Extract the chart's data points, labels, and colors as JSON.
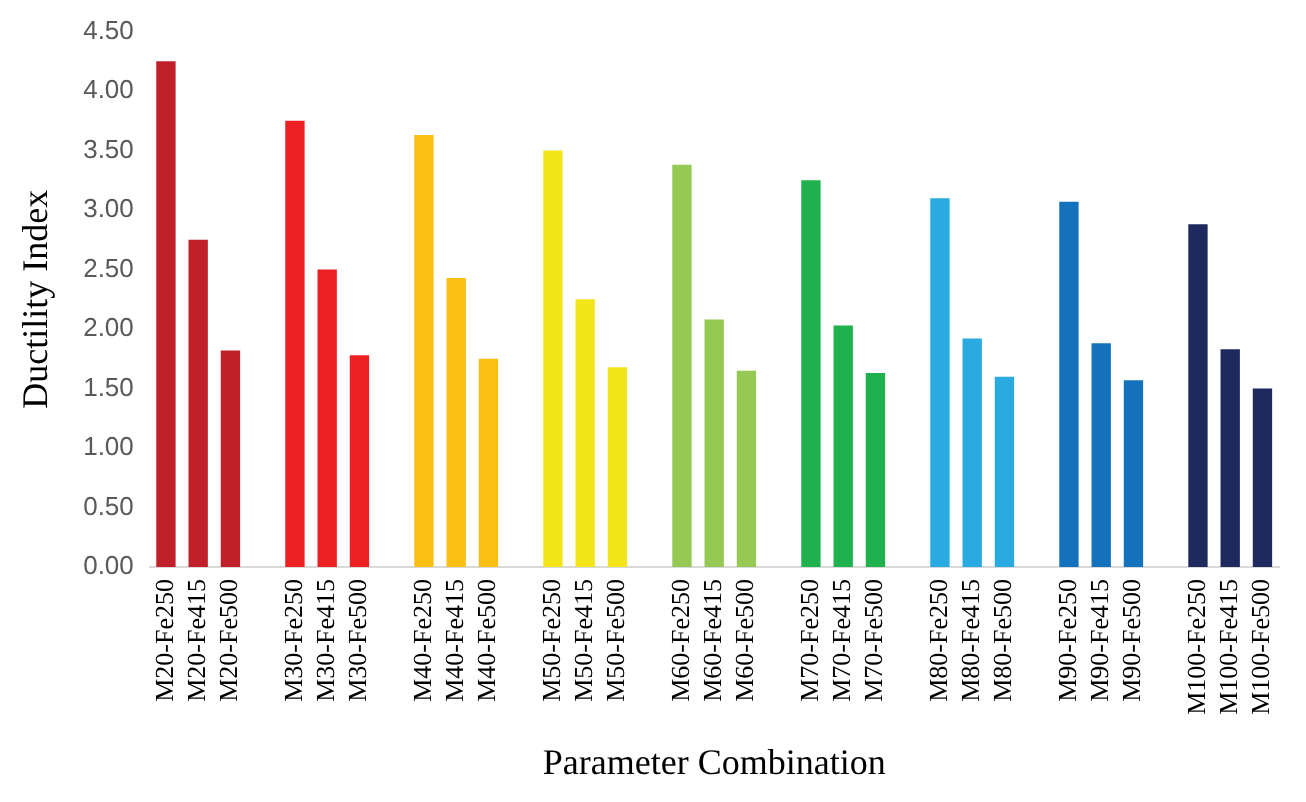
{
  "chart_data": {
    "type": "bar",
    "xlabel": "Parameter Combination",
    "ylabel": "Ductility Index",
    "categories": [
      "M20-Fe250",
      "M20-Fe415",
      "M20-Fe500",
      null,
      "M30-Fe250",
      "M30-Fe415",
      "M30-Fe500",
      null,
      "M40-Fe250",
      "M40-Fe415",
      "M40-Fe500",
      null,
      "M50-Fe250",
      "M50-Fe415",
      "M50-Fe500",
      null,
      "M60-Fe250",
      "M60-Fe415",
      "M60-Fe500",
      null,
      "M70-Fe250",
      "M70-Fe415",
      "M70-Fe500",
      null,
      "M80-Fe250",
      "M80-Fe415",
      "M80-Fe500",
      null,
      "M90-Fe250",
      "M90-Fe415",
      "M90-Fe500",
      null,
      "M100-Fe250",
      "M100-Fe415",
      "M100-Fe500"
    ],
    "values": [
      4.25,
      2.75,
      1.82,
      null,
      3.75,
      2.5,
      1.78,
      null,
      3.63,
      2.43,
      1.75,
      null,
      3.5,
      2.25,
      1.68,
      null,
      3.38,
      2.08,
      1.65,
      null,
      3.25,
      2.03,
      1.63,
      null,
      3.1,
      1.92,
      1.6,
      null,
      3.07,
      1.88,
      1.57,
      null,
      2.88,
      1.83,
      1.5
    ],
    "colors": [
      "#c0202a",
      "#c0202a",
      "#c0202a",
      "#ffffff",
      "#ed2024",
      "#ed2024",
      "#ed2024",
      "#ffffff",
      "#fbbf14",
      "#fbbf14",
      "#fbbf14",
      "#ffffff",
      "#f2e51a",
      "#f2e51a",
      "#f2e51a",
      "#ffffff",
      "#95c954",
      "#95c954",
      "#95c954",
      "#ffffff",
      "#20b14f",
      "#20b14f",
      "#20b14f",
      "#ffffff",
      "#29abe2",
      "#29abe2",
      "#29abe2",
      "#ffffff",
      "#1372bb",
      "#1372bb",
      "#1372bb",
      "#ffffff",
      "#1e2a5e",
      "#1e2a5e",
      "#1e2a5e"
    ],
    "ylim": [
      0,
      4.5
    ],
    "yticks": [
      {
        "value": 0,
        "label": "0.00"
      },
      {
        "value": 0.5,
        "label": "0.50"
      },
      {
        "value": 1,
        "label": "1.00"
      },
      {
        "value": 1.5,
        "label": "1.50"
      },
      {
        "value": 2,
        "label": "2.00"
      },
      {
        "value": 2.5,
        "label": "2.50"
      },
      {
        "value": 3,
        "label": "3.00"
      },
      {
        "value": 3.5,
        "label": "3.50"
      },
      {
        "value": 4,
        "label": "4.00"
      },
      {
        "value": 4.5,
        "label": "4.50"
      }
    ],
    "grid": false,
    "legend": false
  }
}
